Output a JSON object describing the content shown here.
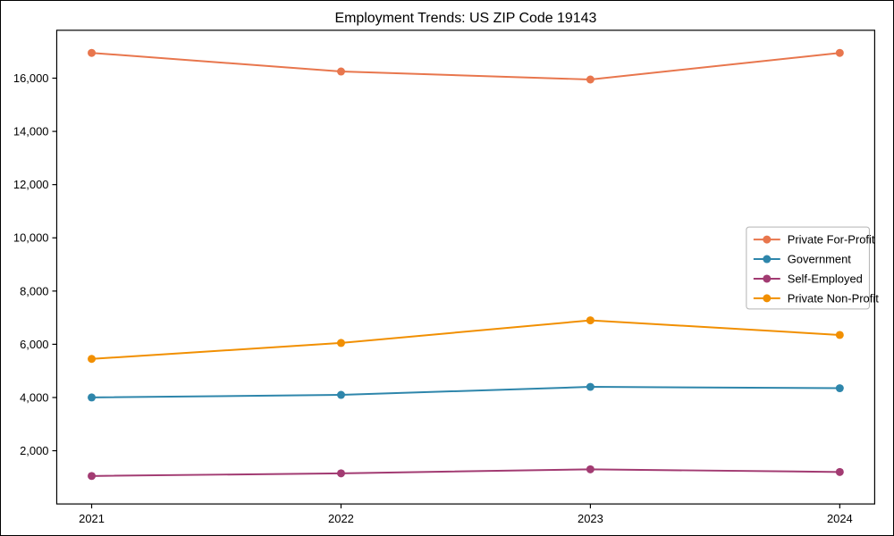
{
  "figure": {
    "background_color": "#ffffff",
    "frame_color": "#000000"
  },
  "chart_data": {
    "type": "line",
    "title": "Employment Trends: US ZIP Code 19143",
    "xlabel": "",
    "ylabel": "",
    "x": [
      2021,
      2022,
      2023,
      2024
    ],
    "x_tick_labels": [
      "2021",
      "2022",
      "2023",
      "2024"
    ],
    "series": [
      {
        "name": "Private For-Profit",
        "color": "#E8764D",
        "values": [
          16950,
          16250,
          15950,
          16950
        ]
      },
      {
        "name": "Government",
        "color": "#2E86AB",
        "values": [
          4000,
          4100,
          4400,
          4350
        ]
      },
      {
        "name": "Self-Employed",
        "color": "#A23B72",
        "values": [
          1050,
          1150,
          1300,
          1200
        ]
      },
      {
        "name": "Private Non-Profit",
        "color": "#F18F01",
        "values": [
          5450,
          6050,
          6900,
          6350
        ]
      }
    ],
    "yticks": [
      2000,
      4000,
      6000,
      8000,
      10000,
      12000,
      14000,
      16000
    ],
    "ytick_labels": [
      "2,000",
      "4,000",
      "6,000",
      "8,000",
      "10,000",
      "12,000",
      "14,000",
      "16,000"
    ],
    "ylim": [
      0,
      17800
    ],
    "xlim": [
      2020.86,
      2024.14
    ],
    "grid": false,
    "marker": "circle",
    "line_width": 2,
    "marker_radius": 4.5,
    "legend": {
      "position": "center right",
      "border_color": "#b3b3b3",
      "background": "#ffffff"
    },
    "axis_color": "#000000"
  }
}
